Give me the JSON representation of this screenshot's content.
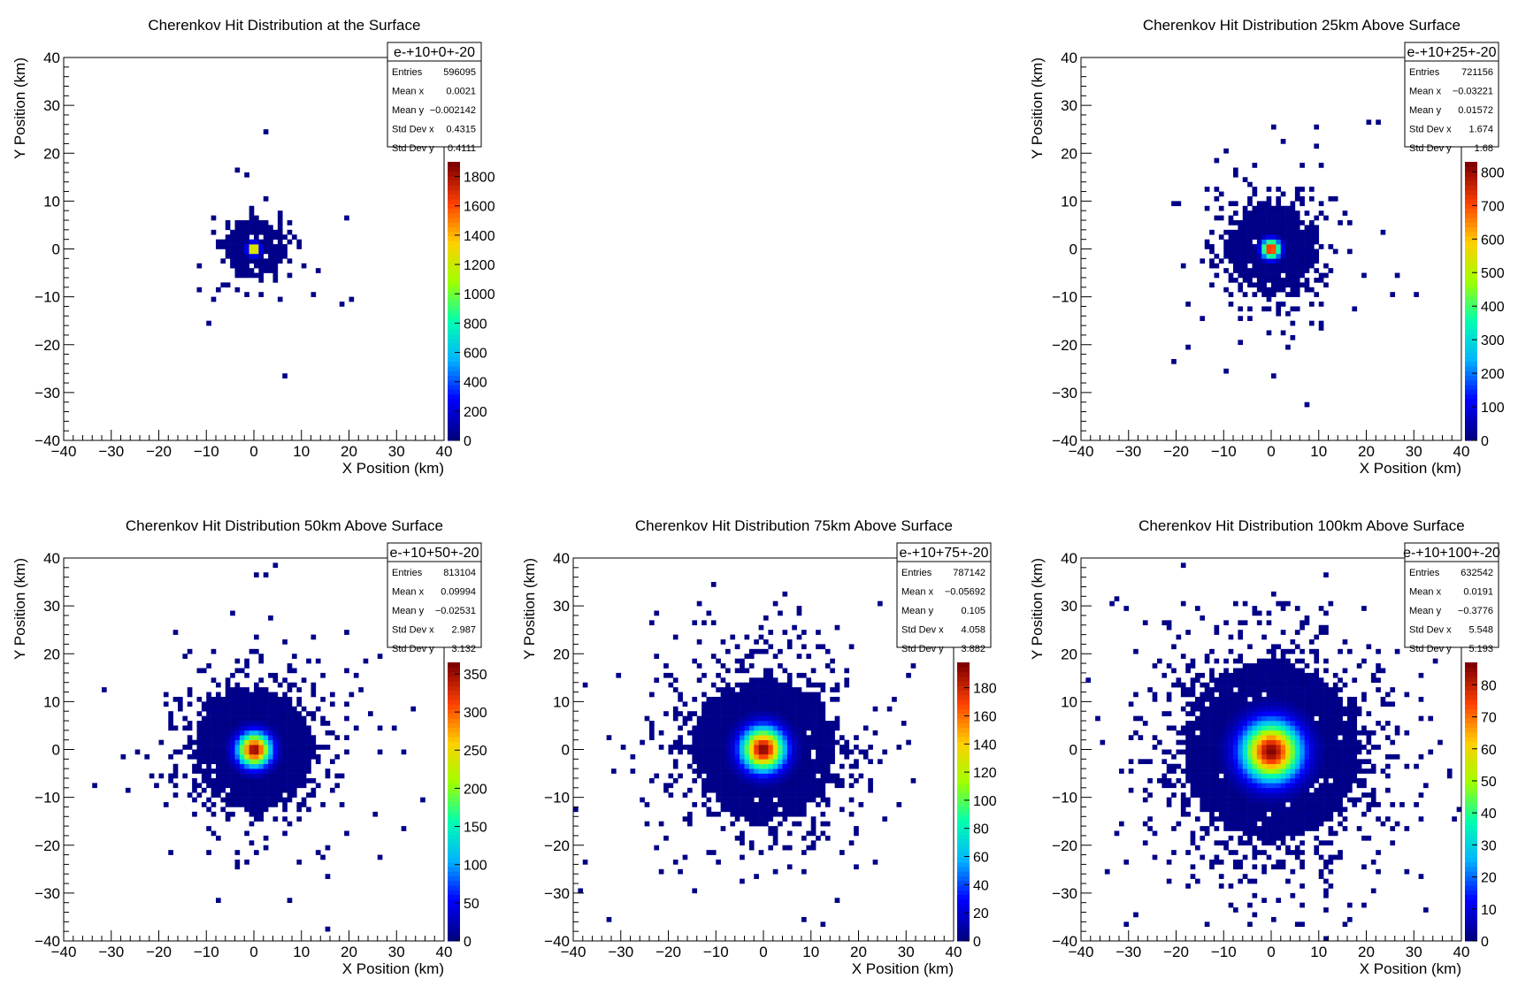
{
  "chart_data": [
    {
      "type": "heatmap",
      "title": "Cherenkov Hit Distribution at the Surface",
      "xlabel": "X Position (km)",
      "ylabel": "Y Position (km)",
      "xlim": [
        -40,
        40
      ],
      "ylim": [
        -40,
        40
      ],
      "x_ticks": [
        -40,
        -30,
        -20,
        -10,
        0,
        10,
        20,
        30,
        40
      ],
      "y_ticks": [
        -40,
        -30,
        -20,
        -10,
        0,
        10,
        20,
        30,
        40
      ],
      "colorbar_max": 1900,
      "colorbar_ticks": [
        0,
        200,
        400,
        600,
        800,
        1000,
        1200,
        1400,
        1600,
        1800
      ],
      "stats": {
        "name": "e-+10+0+-20",
        "labels": [
          "Entries",
          "Mean x",
          "Mean y",
          "Std Dev x",
          "Std Dev y"
        ],
        "values": [
          "596095",
          "0.0021",
          "−0.002142",
          "0.4315",
          "0.4111"
        ]
      },
      "distribution": {
        "std_x": 0.4315,
        "std_y": 0.4111,
        "mean_x": 0.0021,
        "mean_y": -0.002142
      }
    },
    {
      "type": "heatmap",
      "title": "Cherenkov Hit Distribution 25km Above Surface",
      "xlabel": "X Position (km)",
      "ylabel": "Y Position (km)",
      "xlim": [
        -40,
        40
      ],
      "ylim": [
        -40,
        40
      ],
      "x_ticks": [
        -40,
        -30,
        -20,
        -10,
        0,
        10,
        20,
        30,
        40
      ],
      "y_ticks": [
        -40,
        -30,
        -20,
        -10,
        0,
        10,
        20,
        30,
        40
      ],
      "colorbar_max": 830,
      "colorbar_ticks": [
        0,
        100,
        200,
        300,
        400,
        500,
        600,
        700,
        800
      ],
      "stats": {
        "name": "e-+10+25+-20",
        "labels": [
          "Entries",
          "Mean x",
          "Mean y",
          "Std Dev x",
          "Std Dev y"
        ],
        "values": [
          "721156",
          "−0.03221",
          "0.01572",
          "1.674",
          "1.68"
        ]
      },
      "distribution": {
        "std_x": 1.674,
        "std_y": 1.68,
        "mean_x": -0.03221,
        "mean_y": 0.01572
      }
    },
    {
      "type": "heatmap",
      "title": "Cherenkov Hit Distribution 50km Above Surface",
      "xlabel": "X Position (km)",
      "ylabel": "Y Position (km)",
      "xlim": [
        -40,
        40
      ],
      "ylim": [
        -40,
        40
      ],
      "x_ticks": [
        -40,
        -30,
        -20,
        -10,
        0,
        10,
        20,
        30,
        40
      ],
      "y_ticks": [
        -40,
        -30,
        -20,
        -10,
        0,
        10,
        20,
        30,
        40
      ],
      "colorbar_max": 365,
      "colorbar_ticks": [
        0,
        50,
        100,
        150,
        200,
        250,
        300,
        350
      ],
      "stats": {
        "name": "e-+10+50+-20",
        "labels": [
          "Entries",
          "Mean x",
          "Mean y",
          "Std Dev x",
          "Std Dev y"
        ],
        "values": [
          "813104",
          "0.09994",
          "−0.02531",
          "2.987",
          "3.132"
        ]
      },
      "distribution": {
        "std_x": 2.987,
        "std_y": 3.132,
        "mean_x": 0.09994,
        "mean_y": -0.02531
      }
    },
    {
      "type": "heatmap",
      "title": "Cherenkov Hit Distribution 75km Above Surface",
      "xlabel": "X Position (km)",
      "ylabel": "Y Position (km)",
      "xlim": [
        -40,
        40
      ],
      "ylim": [
        -40,
        40
      ],
      "x_ticks": [
        -40,
        -30,
        -20,
        -10,
        0,
        10,
        20,
        30,
        40
      ],
      "y_ticks": [
        -40,
        -30,
        -20,
        -10,
        0,
        10,
        20,
        30,
        40
      ],
      "colorbar_max": 198,
      "colorbar_ticks": [
        0,
        20,
        40,
        60,
        80,
        100,
        120,
        140,
        160,
        180
      ],
      "stats": {
        "name": "e-+10+75+-20",
        "labels": [
          "Entries",
          "Mean x",
          "Mean y",
          "Std Dev x",
          "Std Dev y"
        ],
        "values": [
          "787142",
          "−0.05692",
          "0.105",
          "4.058",
          "3.882"
        ]
      },
      "distribution": {
        "std_x": 4.058,
        "std_y": 3.882,
        "mean_x": -0.05692,
        "mean_y": 0.105
      }
    },
    {
      "type": "heatmap",
      "title": "Cherenkov Hit Distribution 100km Above Surface",
      "xlabel": "X Position (km)",
      "ylabel": "Y Position (km)",
      "xlim": [
        -40,
        40
      ],
      "ylim": [
        -40,
        40
      ],
      "x_ticks": [
        -40,
        -30,
        -20,
        -10,
        0,
        10,
        20,
        30,
        40
      ],
      "y_ticks": [
        -40,
        -30,
        -20,
        -10,
        0,
        10,
        20,
        30,
        40
      ],
      "colorbar_max": 87,
      "colorbar_ticks": [
        0,
        10,
        20,
        30,
        40,
        50,
        60,
        70,
        80
      ],
      "stats": {
        "name": "e-+10+100+-20",
        "labels": [
          "Entries",
          "Mean x",
          "Mean y",
          "Std Dev x",
          "Std Dev y"
        ],
        "values": [
          "632542",
          "0.0191",
          "−0.3776",
          "5.548",
          "5.193"
        ]
      },
      "distribution": {
        "std_x": 5.548,
        "std_y": 5.193,
        "mean_x": 0.0191,
        "mean_y": -0.3776
      }
    }
  ],
  "colors": {
    "background_zero": "#ffffff",
    "colormap": [
      "#000080",
      "#0000ff",
      "#00b4ff",
      "#00ffb0",
      "#a0ff00",
      "#ffd000",
      "#ff4000",
      "#800000"
    ]
  }
}
